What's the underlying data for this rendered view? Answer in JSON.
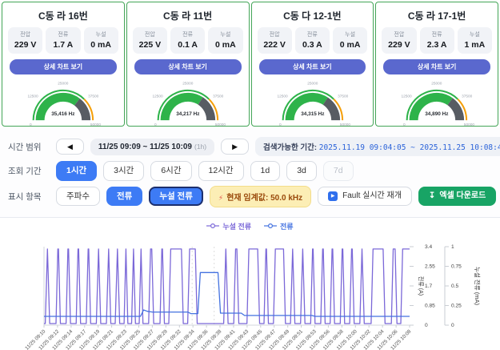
{
  "colors": {
    "card_border_green": "#43a557",
    "accent_indigo": "#5a68ce",
    "primary_blue": "#3d7bf5",
    "gauge_green": "#2eb34a",
    "gauge_gray": "#585c63",
    "gauge_warn_orange": "#f59f0a",
    "excel_green": "#18a465",
    "threshold_yellow": "#fceeb5",
    "series_purple": "#7b68d8",
    "series_blue": "#4472e0"
  },
  "cards": [
    {
      "title": "C동 라 16번",
      "detail_button": "상세 차트 보기",
      "stats": [
        {
          "label": "전압",
          "value": "229 V"
        },
        {
          "label": "전류",
          "value": "1.7 A"
        },
        {
          "label": "누설",
          "value": "0 mA"
        }
      ],
      "gauge": {
        "value": 35416,
        "max": 50000,
        "display": "35,416 Hz",
        "ticks": [
          "0",
          "12500",
          "25000",
          "37500",
          "50000"
        ]
      }
    },
    {
      "title": "C동 라 11번",
      "detail_button": "상세 차트 보기",
      "stats": [
        {
          "label": "전압",
          "value": "225 V"
        },
        {
          "label": "전류",
          "value": "0.1 A"
        },
        {
          "label": "누설",
          "value": "0 mA"
        }
      ],
      "gauge": {
        "value": 34217,
        "max": 50000,
        "display": "34,217 Hz",
        "ticks": [
          "0",
          "12500",
          "25000",
          "37500",
          "50000"
        ]
      }
    },
    {
      "title": "C동 다 12-1번",
      "detail_button": "상세 차트 보기",
      "stats": [
        {
          "label": "전압",
          "value": "222 V"
        },
        {
          "label": "전류",
          "value": "0.3 A"
        },
        {
          "label": "누설",
          "value": "0 mA"
        }
      ],
      "gauge": {
        "value": 34315,
        "max": 50000,
        "display": "34,315 Hz",
        "ticks": [
          "0",
          "12500",
          "25000",
          "37500",
          "50000"
        ]
      }
    },
    {
      "title": "C동 라 17-1번",
      "detail_button": "상세 차트 보기",
      "stats": [
        {
          "label": "전압",
          "value": "229 V"
        },
        {
          "label": "전류",
          "value": "2.3 A"
        },
        {
          "label": "누설",
          "value": "1 mA"
        }
      ],
      "gauge": {
        "value": 34890,
        "max": 50000,
        "display": "34,890 Hz",
        "ticks": [
          "0",
          "12500",
          "25000",
          "37500",
          "50000"
        ]
      }
    }
  ],
  "controls": {
    "time_range": {
      "label": "시간 범위",
      "prev_icon": "◀",
      "next_icon": "▶",
      "range": "11/25 09:09 ~ 11/25 10:09",
      "duration": "(1h)",
      "available_label": "검색가능한 기간:",
      "available_range": "2025.11.19 09:04:05 ~ 2025.11.25 10:08:48"
    },
    "period": {
      "label": "조회 기간",
      "options": [
        {
          "label": "1시간",
          "state": "selected"
        },
        {
          "label": "3시간",
          "state": "normal"
        },
        {
          "label": "6시간",
          "state": "normal"
        },
        {
          "label": "12시간",
          "state": "normal"
        },
        {
          "label": "1d",
          "state": "normal"
        },
        {
          "label": "3d",
          "state": "normal"
        },
        {
          "label": "7d",
          "state": "disabled"
        }
      ]
    },
    "display": {
      "label": "표시 항목",
      "frequency": "주파수",
      "current": "전류",
      "leak": "누설 전류",
      "threshold_icon": "⚡",
      "threshold_badge": "현재 임계값: 50.0 kHz",
      "fault_play_icon": "▶",
      "fault_button": "Fault 실시간 재개",
      "excel_icon": "↧",
      "excel_button": "엑셀 다운로드"
    }
  },
  "chart_data": {
    "type": "line",
    "legend": [
      {
        "name": "누설 전류",
        "color": "#7b68d8"
      },
      {
        "name": "전류",
        "color": "#4472e0"
      }
    ],
    "x_axis": {
      "labels": [
        "11/25 09:10",
        "11/25 09:12",
        "11/25 09:14",
        "11/25 09:17",
        "11/25 09:19",
        "11/25 09:21",
        "11/25 09:23",
        "11/25 09:25",
        "11/25 09:27",
        "11/25 09:29",
        "11/25 09:32",
        "11/25 09:34",
        "11/25 09:36",
        "11/25 09:38",
        "11/25 09:41",
        "11/25 09:43",
        "11/25 09:45",
        "11/25 09:47",
        "11/25 09:49",
        "11/25 09:51",
        "11/25 09:53",
        "11/25 09:56",
        "11/25 09:58",
        "11/25 10:00",
        "11/25 10:02",
        "11/25 10:04",
        "11/25 10:06",
        "11/25 10:08"
      ],
      "t_domain": [
        1,
        59
      ]
    },
    "y_axis_current": {
      "label": "전류 (A)",
      "ticks": [
        0,
        0.85,
        1.7,
        2.55,
        3.4
      ],
      "max": 3.4
    },
    "y_axis_leak": {
      "label": "누설 전류 (mA)",
      "ticks": [
        0,
        0.25,
        0.5,
        0.75,
        1
      ],
      "max": 1
    },
    "annotations": {
      "dashed_t": [
        24.5,
        28.0
      ]
    },
    "series": [
      {
        "name": "누설 전류",
        "axis": "leak",
        "color": "#7b68d8",
        "high": 0.97,
        "low": 0.02,
        "pulses": [
          [
            1.2,
            1.9
          ],
          [
            2.9,
            3.6
          ],
          [
            4.5,
            5.2
          ],
          [
            6.1,
            6.8
          ],
          [
            7.7,
            8.4
          ],
          [
            9.3,
            10.0
          ],
          [
            10.9,
            11.6
          ],
          [
            12.3,
            13.0
          ],
          [
            13.7,
            14.3
          ],
          [
            14.9,
            15.5
          ],
          [
            16.1,
            16.7
          ],
          [
            17.6,
            18.4
          ],
          [
            19.4,
            20.1
          ],
          [
            20.8,
            23.1
          ],
          [
            23.8,
            25.3
          ],
          [
            29.5,
            30.2
          ],
          [
            31.1,
            31.9
          ],
          [
            33.2,
            35.2
          ],
          [
            35.9,
            36.6
          ],
          [
            37.4,
            39.3
          ],
          [
            40.1,
            40.8
          ],
          [
            41.7,
            42.4
          ],
          [
            43.3,
            44.0
          ],
          [
            44.9,
            45.6
          ],
          [
            46.4,
            47.1
          ],
          [
            48.0,
            48.7
          ],
          [
            49.5,
            50.2
          ],
          [
            51.1,
            51.8
          ],
          [
            52.9,
            55.1
          ],
          [
            56.1,
            57.0
          ],
          [
            57.6,
            59.0
          ]
        ]
      },
      {
        "name": "전류",
        "axis": "current",
        "color": "#4472e0",
        "points": [
          [
            1,
            0.38
          ],
          [
            16.3,
            0.38
          ],
          [
            16.8,
            0.66
          ],
          [
            17.4,
            0.6
          ],
          [
            18.2,
            0.57
          ],
          [
            23.8,
            0.57
          ],
          [
            24.3,
            0.5
          ],
          [
            25.4,
            0.5
          ],
          [
            25.8,
            2.28
          ],
          [
            28.6,
            2.28
          ],
          [
            29.0,
            0.52
          ],
          [
            32.3,
            0.52
          ],
          [
            32.8,
            0.42
          ],
          [
            43.5,
            0.42
          ],
          [
            44.0,
            0.38
          ],
          [
            59,
            0.38
          ]
        ]
      }
    ]
  }
}
